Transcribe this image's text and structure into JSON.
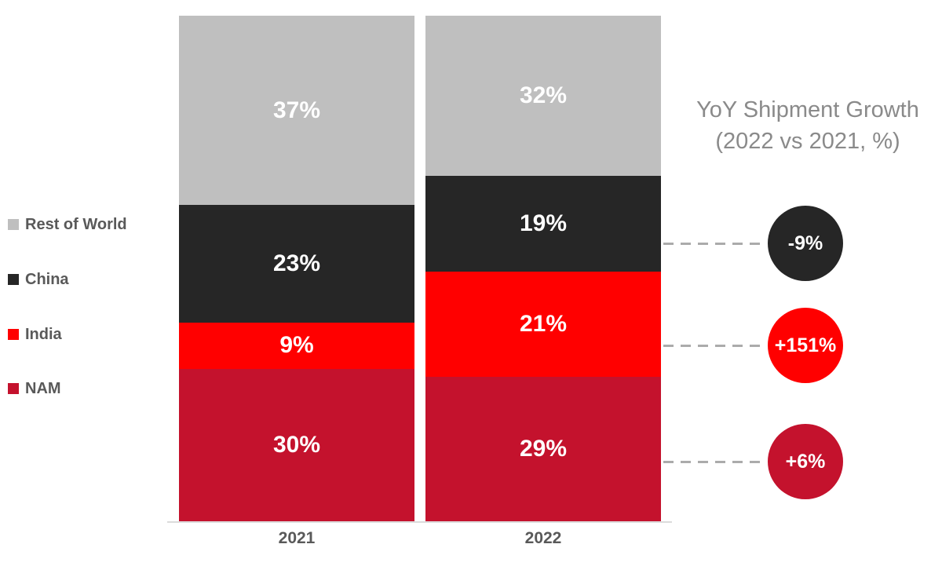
{
  "page": {
    "background": "#FFFFFF"
  },
  "chart_data": {
    "type": "bar",
    "variant": "stacked-100",
    "orientation": "vertical",
    "categories": [
      "2021",
      "2022"
    ],
    "series": [
      {
        "name": "Rest of World",
        "color": "#BFBFBF",
        "values": [
          37,
          32
        ]
      },
      {
        "name": "China",
        "color": "#262626",
        "values": [
          23,
          19
        ]
      },
      {
        "name": "India",
        "color": "#FF0000",
        "values": [
          9,
          21
        ]
      },
      {
        "name": "NAM",
        "color": "#C4122D",
        "values": [
          30,
          29
        ]
      }
    ],
    "value_unit": "%",
    "value_label_color": "#FFFFFF",
    "legend_position": "left",
    "legend_text_color": "#595959",
    "category_label_color": "#595959",
    "gridlines": false,
    "axis_line_color": "#DBDBDB",
    "annotations": {
      "title_line1": "YoY Shipment Growth",
      "title_line2": "(2022 vs 2021, %)",
      "title_color": "#8A8A8A",
      "connector_color": "#ABABAB",
      "growth": [
        {
          "series": "China",
          "label": "-9%",
          "color": "#262626"
        },
        {
          "series": "India",
          "label": "+151%",
          "color": "#FF0000"
        },
        {
          "series": "NAM",
          "label": "+6%",
          "color": "#C4122D"
        }
      ]
    }
  }
}
